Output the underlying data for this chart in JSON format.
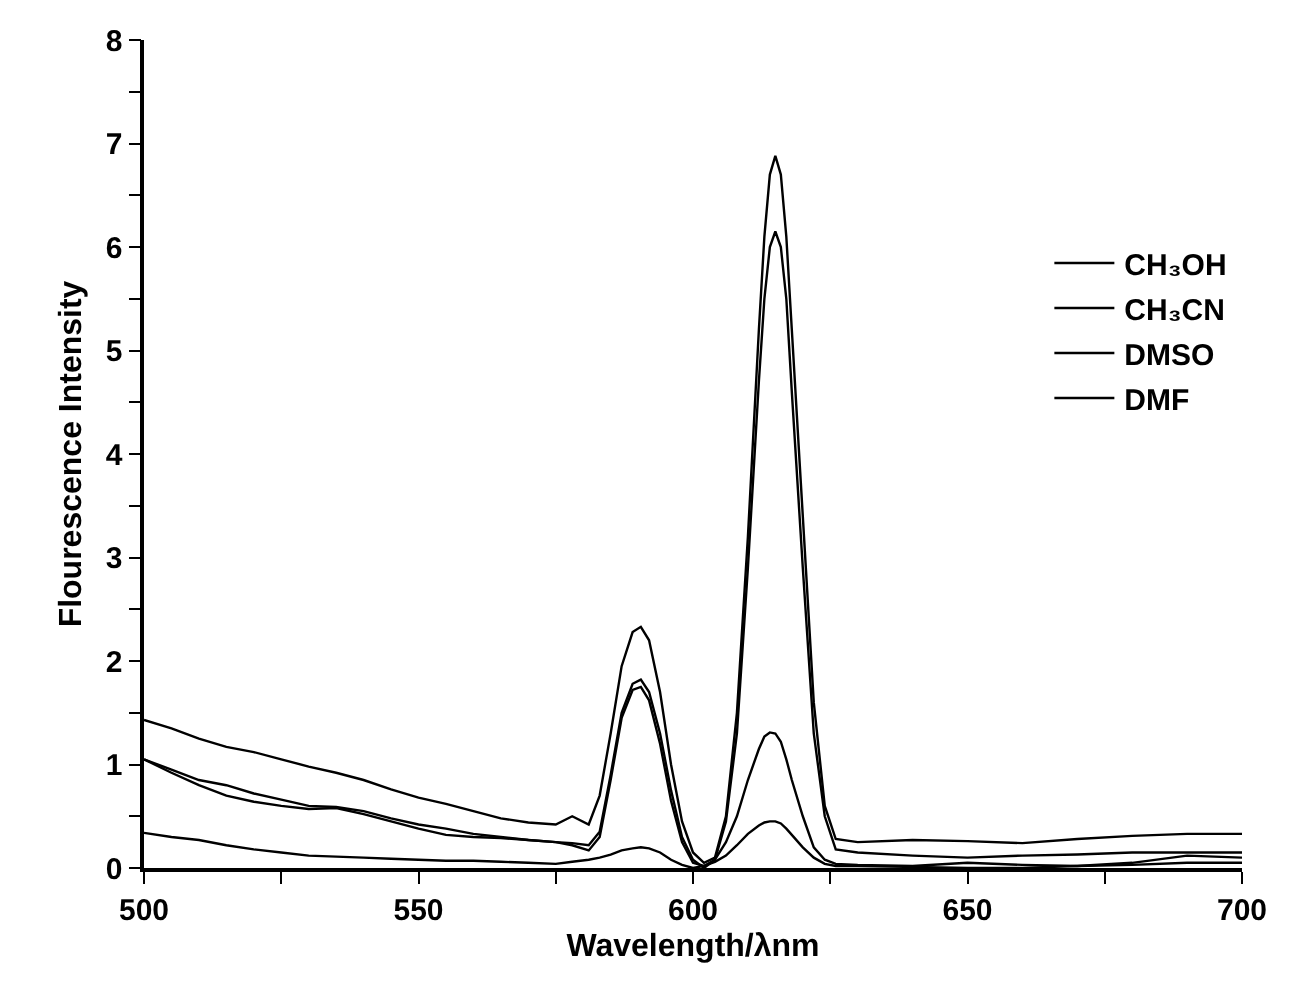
{
  "chart_data": {
    "type": "line",
    "xlabel": "Wavelength/λnm",
    "ylabel": "Flourescence Intensity",
    "x": [
      500,
      505,
      510,
      515,
      520,
      525,
      530,
      535,
      540,
      545,
      550,
      555,
      560,
      565,
      570,
      575,
      578,
      581,
      583,
      585,
      587,
      589,
      590.5,
      592,
      594,
      596,
      598,
      600,
      602,
      604,
      606,
      608,
      610,
      612,
      613,
      614,
      615,
      616,
      617,
      618,
      620,
      622,
      624,
      626,
      630,
      640,
      650,
      660,
      670,
      680,
      690,
      700
    ],
    "series": [
      {
        "name": "CH₃OH",
        "color": "#000000",
        "values": [
          1.43,
          1.35,
          1.25,
          1.17,
          1.12,
          1.05,
          0.98,
          0.92,
          0.85,
          0.76,
          0.68,
          0.62,
          0.55,
          0.48,
          0.44,
          0.42,
          0.5,
          0.42,
          0.7,
          1.3,
          1.95,
          2.28,
          2.33,
          2.2,
          1.7,
          1.0,
          0.45,
          0.15,
          0.05,
          0.1,
          0.5,
          1.5,
          3.2,
          5.2,
          6.1,
          6.7,
          6.88,
          6.7,
          6.1,
          5.2,
          3.4,
          1.6,
          0.6,
          0.28,
          0.25,
          0.27,
          0.26,
          0.24,
          0.28,
          0.31,
          0.33,
          0.33
        ]
      },
      {
        "name": "CH₃CN",
        "color": "#000000",
        "values": [
          1.05,
          0.95,
          0.85,
          0.8,
          0.72,
          0.66,
          0.6,
          0.59,
          0.55,
          0.48,
          0.42,
          0.38,
          0.33,
          0.3,
          0.27,
          0.25,
          0.24,
          0.22,
          0.35,
          0.9,
          1.5,
          1.78,
          1.82,
          1.7,
          1.3,
          0.75,
          0.3,
          0.08,
          0.0,
          0.08,
          0.45,
          1.3,
          2.9,
          4.7,
          5.5,
          6.0,
          6.15,
          6.0,
          5.5,
          4.6,
          2.9,
          1.3,
          0.5,
          0.18,
          0.15,
          0.12,
          0.1,
          0.12,
          0.13,
          0.15,
          0.15,
          0.15
        ]
      },
      {
        "name": "DMSO",
        "color": "#000000",
        "values": [
          1.05,
          0.92,
          0.8,
          0.7,
          0.64,
          0.6,
          0.57,
          0.58,
          0.52,
          0.45,
          0.38,
          0.32,
          0.3,
          0.29,
          0.27,
          0.25,
          0.22,
          0.17,
          0.3,
          0.85,
          1.45,
          1.72,
          1.75,
          1.62,
          1.2,
          0.65,
          0.25,
          0.05,
          0.02,
          0.08,
          0.25,
          0.5,
          0.85,
          1.15,
          1.27,
          1.31,
          1.3,
          1.22,
          1.05,
          0.85,
          0.5,
          0.2,
          0.08,
          0.04,
          0.03,
          0.02,
          0.05,
          0.03,
          0.02,
          0.03,
          0.05,
          0.05
        ]
      },
      {
        "name": "DMF",
        "color": "#000000",
        "values": [
          0.34,
          0.3,
          0.27,
          0.22,
          0.18,
          0.15,
          0.12,
          0.11,
          0.1,
          0.09,
          0.08,
          0.07,
          0.07,
          0.06,
          0.05,
          0.04,
          0.06,
          0.08,
          0.1,
          0.13,
          0.17,
          0.19,
          0.2,
          0.19,
          0.15,
          0.08,
          0.03,
          0.0,
          0.02,
          0.06,
          0.12,
          0.22,
          0.33,
          0.41,
          0.44,
          0.45,
          0.45,
          0.43,
          0.38,
          0.32,
          0.2,
          0.1,
          0.04,
          0.02,
          0.02,
          0.01,
          0.0,
          0.0,
          0.02,
          0.05,
          0.12,
          0.1
        ]
      }
    ],
    "xlim": [
      500,
      700
    ],
    "xticks": [
      500,
      {
        "value": 525,
        "label": null
      },
      550,
      {
        "value": 575,
        "label": null
      },
      600,
      {
        "value": 625,
        "label": null
      },
      650,
      {
        "value": 675,
        "label": null
      },
      700
    ],
    "ylim": [
      0,
      8
    ],
    "yticks": [
      0,
      {
        "value": 0.5,
        "label": null
      },
      1,
      {
        "value": 1.5,
        "label": null
      },
      2,
      {
        "value": 2.5,
        "label": null
      },
      3,
      {
        "value": 3.5,
        "label": null
      },
      4,
      {
        "value": 4.5,
        "label": null
      },
      5,
      {
        "value": 5.5,
        "label": null
      },
      6,
      {
        "value": 6.5,
        "label": null
      },
      7,
      {
        "value": 7.5,
        "label": null
      },
      8
    ],
    "grid": false,
    "legend": "top right",
    "marker": "none",
    "line_style": "solid"
  }
}
